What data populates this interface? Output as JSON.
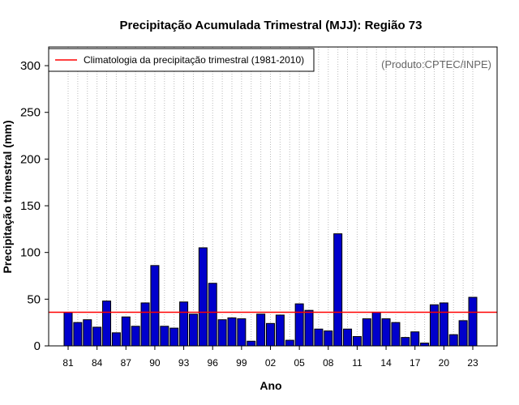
{
  "chart_data": {
    "type": "bar",
    "title": "Precipitação Acumulada Trimestral (MJJ): Região 73",
    "xlabel": "Ano",
    "ylabel": "Precipitação trimestral (mm)",
    "ylim": [
      0,
      320
    ],
    "yticks": [
      0,
      50,
      100,
      150,
      200,
      250,
      300
    ],
    "xticks": [
      "81",
      "84",
      "87",
      "90",
      "93",
      "96",
      "99",
      "02",
      "05",
      "08",
      "11",
      "14",
      "17",
      "20",
      "23"
    ],
    "categories": [
      1981,
      1982,
      1983,
      1984,
      1985,
      1986,
      1987,
      1988,
      1989,
      1990,
      1991,
      1992,
      1993,
      1994,
      1995,
      1996,
      1997,
      1998,
      1999,
      2000,
      2001,
      2002,
      2003,
      2004,
      2005,
      2006,
      2007,
      2008,
      2009,
      2010,
      2011,
      2012,
      2013,
      2014,
      2015,
      2016,
      2017,
      2018,
      2019,
      2020,
      2021,
      2022,
      2023
    ],
    "values": [
      36,
      25,
      28,
      20,
      48,
      14,
      31,
      21,
      46,
      86,
      21,
      19,
      47,
      34,
      105,
      67,
      28,
      30,
      29,
      5,
      34,
      24,
      33,
      6,
      45,
      38,
      18,
      16,
      120,
      18,
      10,
      29,
      36,
      29,
      25,
      9,
      15,
      3,
      44,
      46,
      12,
      27,
      52
    ],
    "climatology": {
      "label": "Climatologia da precipitação trimestral (1981-2010)",
      "value": 36
    },
    "source_note": "(Produto:CPTEC/INPE)",
    "legend_position": "top-left",
    "grid": "vertical dotted",
    "colors": {
      "bar": "#0000cc",
      "bar_border": "#000000",
      "climatology": "#ff0000",
      "grid": "#bbbbbb",
      "note": "#666666"
    }
  }
}
